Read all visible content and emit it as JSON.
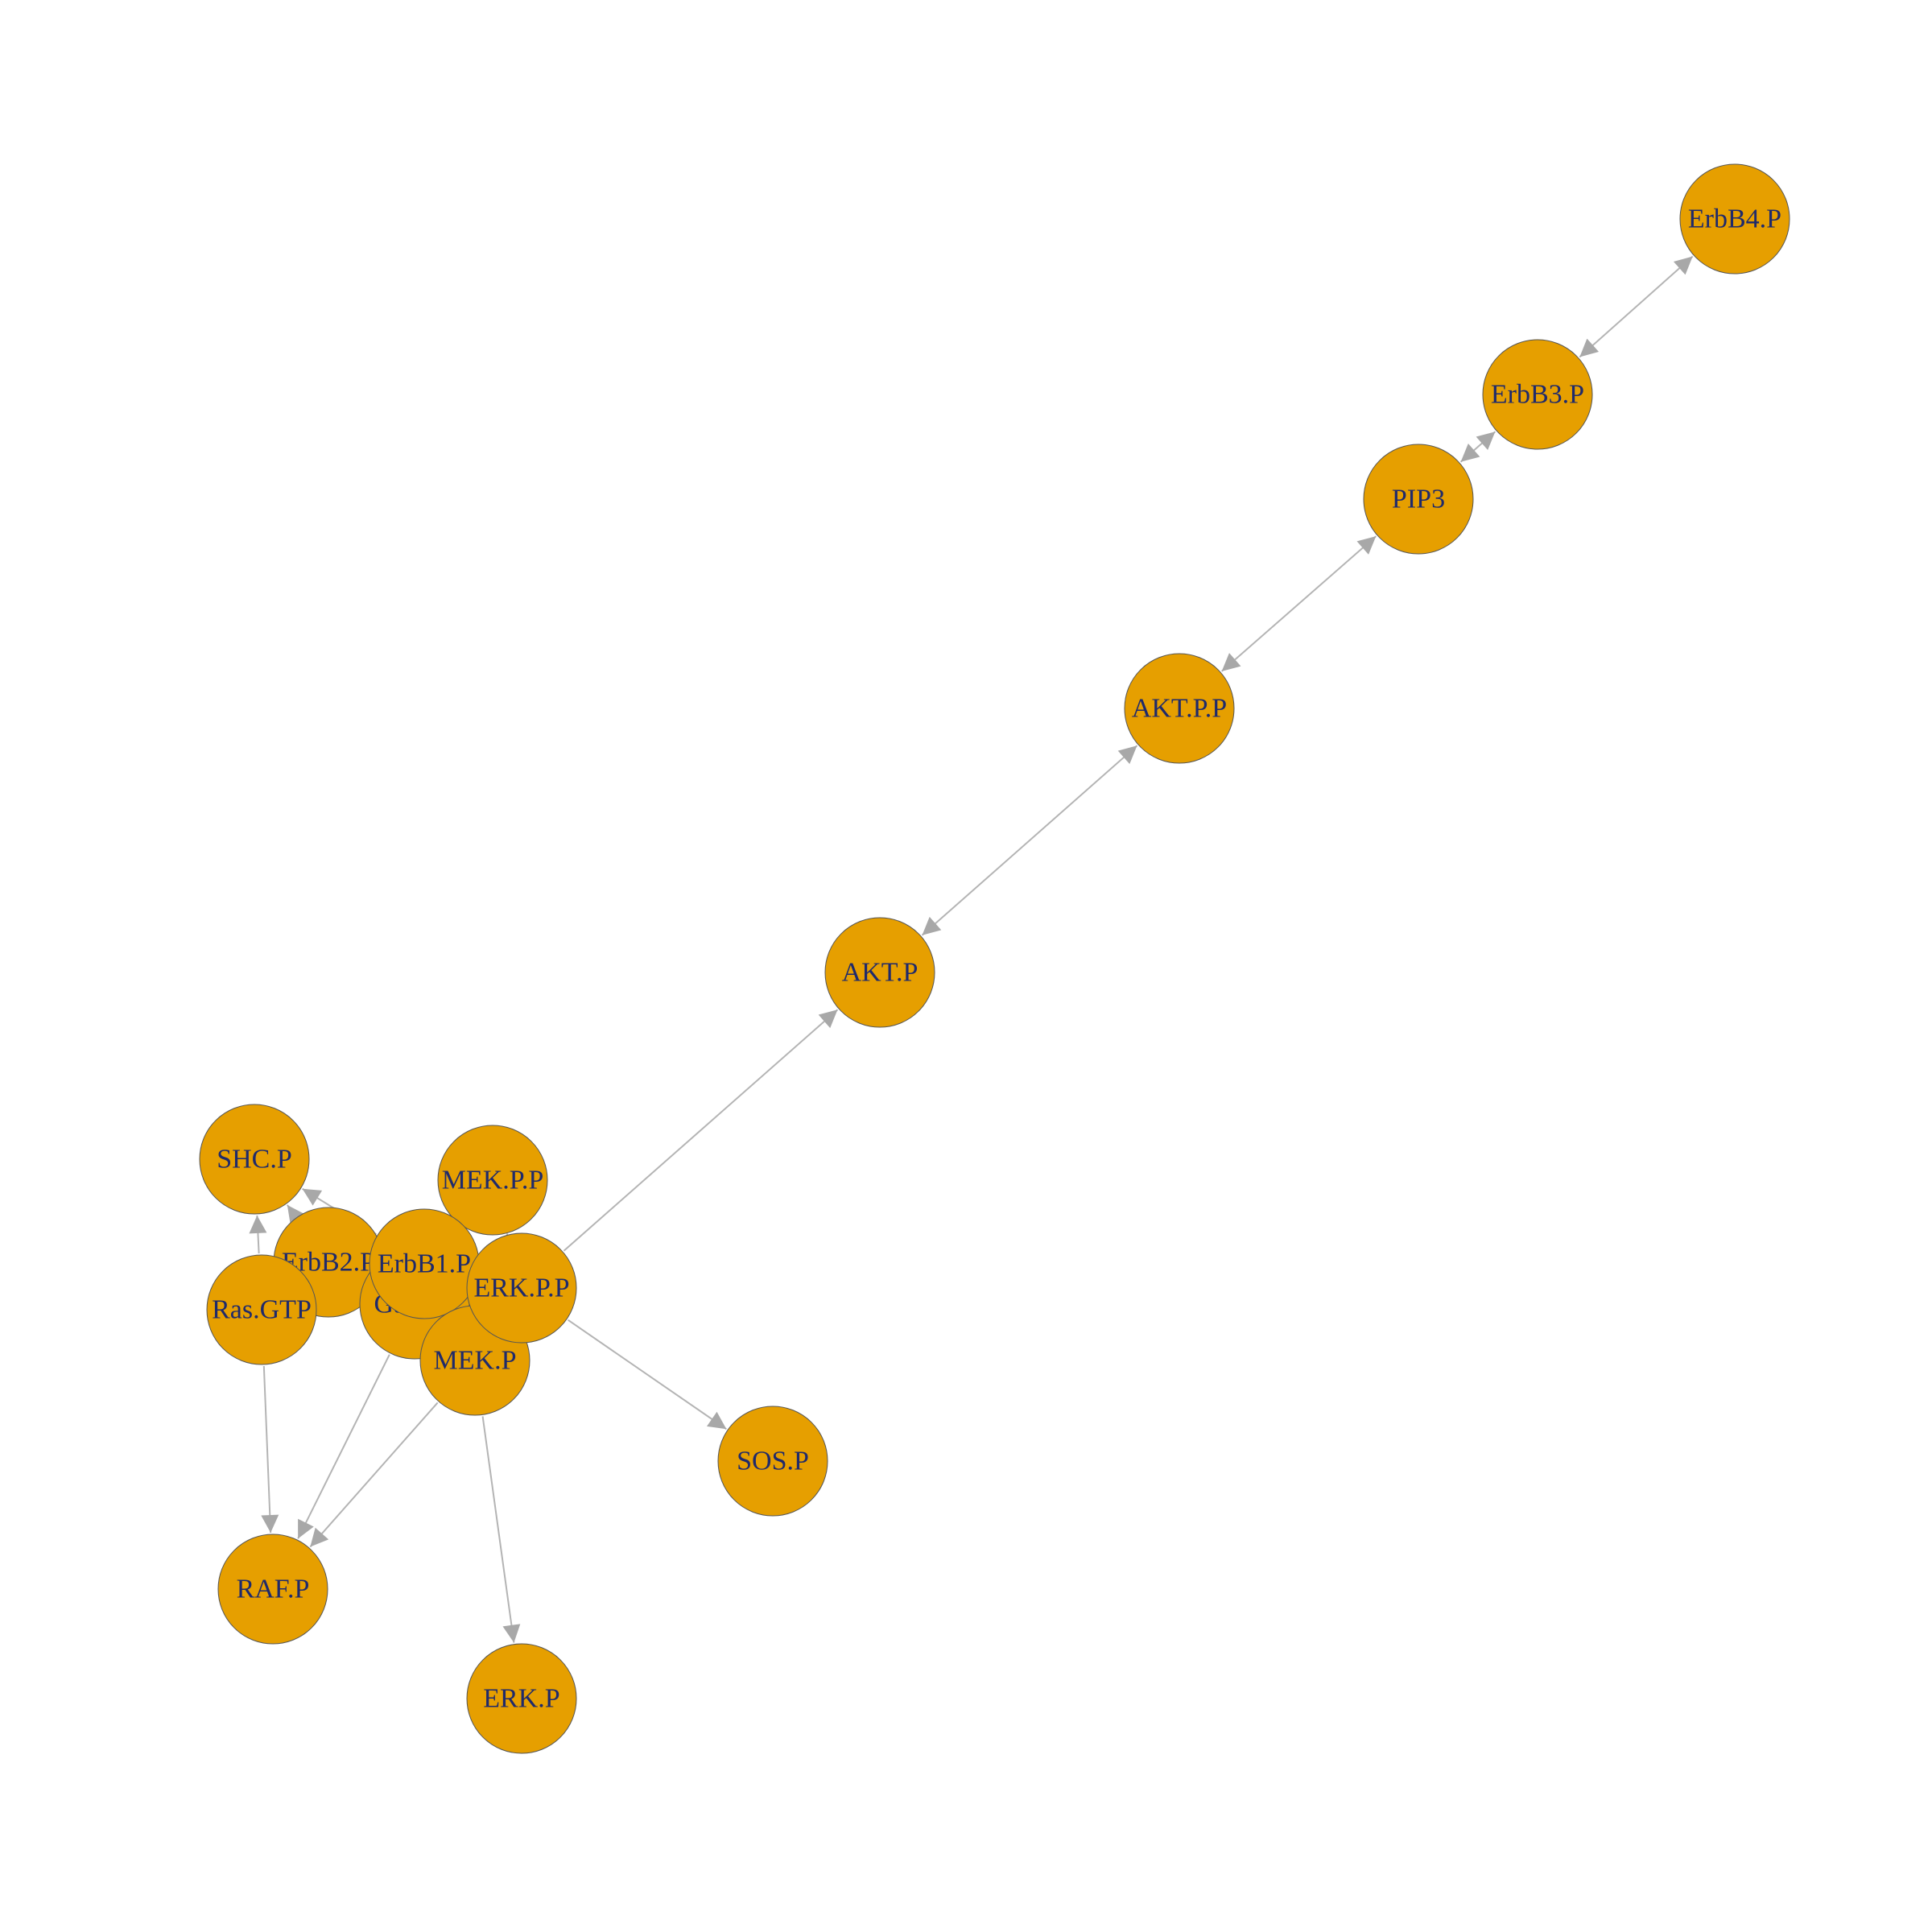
{
  "graph": {
    "node_fill": "#E69F00",
    "node_stroke": "#555555",
    "label_color": "#1f2a6b",
    "edge_color": "#b4b4b4",
    "nodes": [
      {
        "id": "ErbB4.P",
        "label": "ErbB4.P"
      },
      {
        "id": "ErbB3.P",
        "label": "ErbB3.P"
      },
      {
        "id": "PIP3",
        "label": "PIP3"
      },
      {
        "id": "AKT.P.P",
        "label": "AKT.P.P"
      },
      {
        "id": "AKT.P",
        "label": "AKT.P"
      },
      {
        "id": "SHC.P",
        "label": "SHC.P"
      },
      {
        "id": "MEK.P.P",
        "label": "MEK.P.P"
      },
      {
        "id": "ErbB2.P",
        "label": "ErbB2.P"
      },
      {
        "id": "Gab1.P",
        "label": "Gab1.P"
      },
      {
        "id": "ErbB1.P",
        "label": "ErbB1.P"
      },
      {
        "id": "Ras.GTP",
        "label": "Ras.GTP"
      },
      {
        "id": "MEK.P",
        "label": "MEK.P"
      },
      {
        "id": "ERK.P.P",
        "label": "ERK.P.P"
      },
      {
        "id": "SOS.P",
        "label": "SOS.P"
      },
      {
        "id": "RAF.P",
        "label": "RAF.P"
      },
      {
        "id": "ERK.P",
        "label": "ERK.P"
      }
    ],
    "edges": [
      {
        "from": "ErbB3.P",
        "to": "ErbB4.P",
        "bidirectional": true
      },
      {
        "from": "PIP3",
        "to": "ErbB3.P",
        "bidirectional": true
      },
      {
        "from": "AKT.P.P",
        "to": "PIP3",
        "bidirectional": true
      },
      {
        "from": "AKT.P",
        "to": "AKT.P.P",
        "bidirectional": true
      },
      {
        "from": "ERK.P.P",
        "to": "AKT.P",
        "bidirectional": false
      },
      {
        "from": "ERK.P.P",
        "to": "SOS.P",
        "bidirectional": false
      },
      {
        "from": "MEK.P",
        "to": "ERK.P",
        "bidirectional": false
      },
      {
        "from": "Ras.GTP",
        "to": "RAF.P",
        "bidirectional": false
      },
      {
        "from": "MEK.P",
        "to": "RAF.P",
        "bidirectional": false
      },
      {
        "from": "Gab1.P",
        "to": "RAF.P",
        "bidirectional": false
      },
      {
        "from": "Ras.GTP",
        "to": "SHC.P",
        "bidirectional": false
      },
      {
        "from": "ErbB2.P",
        "to": "SHC.P",
        "bidirectional": false
      },
      {
        "from": "ErbB1.P",
        "to": "SHC.P",
        "bidirectional": false
      },
      {
        "from": "ErbB1.P",
        "to": "Gab1.P",
        "bidirectional": false
      },
      {
        "from": "MEK.P.P",
        "to": "ERK.P.P",
        "bidirectional": false
      }
    ]
  }
}
